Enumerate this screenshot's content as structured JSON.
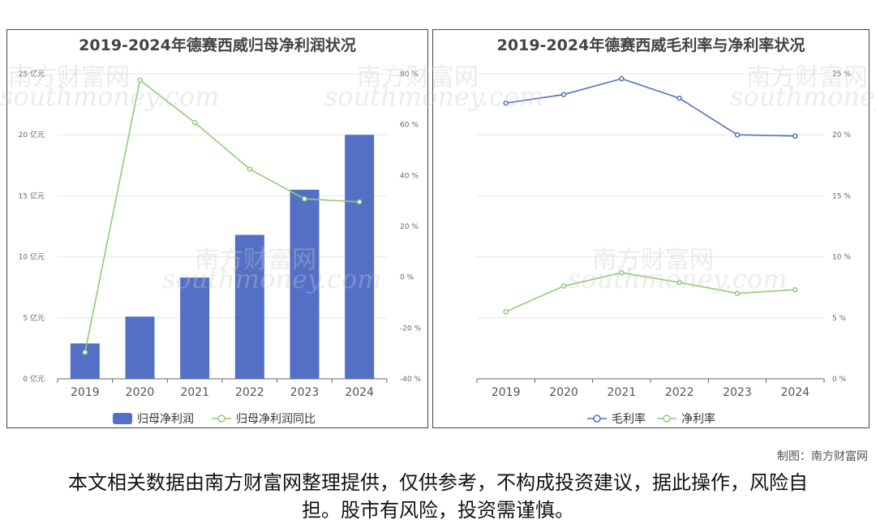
{
  "watermark": {
    "brand": "南方财富网",
    "site": "southmoney.com"
  },
  "chart_data": [
    {
      "type": "bar",
      "title": "2019-2024年德赛西威归母净利润状况",
      "categories": [
        "2019",
        "2020",
        "2021",
        "2022",
        "2023",
        "2024"
      ],
      "series": [
        {
          "name": "归母净利润",
          "kind": "bar",
          "axis": "left",
          "color": "#5470c6",
          "values": [
            2.9,
            5.1,
            8.3,
            11.8,
            15.5,
            20.0
          ]
        },
        {
          "name": "归母净利润同比",
          "kind": "line",
          "axis": "right",
          "color": "#91cc75",
          "values": [
            -29.6,
            77.5,
            60.8,
            42.5,
            30.8,
            29.6
          ]
        }
      ],
      "left_axis": {
        "ylim": [
          0,
          25
        ],
        "ticks": [
          "0 亿元",
          "5 亿元",
          "10 亿元",
          "15 亿元",
          "20 亿元",
          "25 亿元"
        ]
      },
      "right_axis": {
        "ylim": [
          -40,
          80
        ],
        "ticks": [
          "-40 %",
          "-20 %",
          "0 %",
          "20 %",
          "40 %",
          "60 %",
          "80 %"
        ]
      },
      "legend": "bottom"
    },
    {
      "type": "line",
      "title": "2019-2024年德赛西威毛利率与净利率状况",
      "categories": [
        "2019",
        "2020",
        "2021",
        "2022",
        "2023",
        "2024"
      ],
      "series": [
        {
          "name": "毛利率",
          "color": "#5470c6",
          "values": [
            22.6,
            23.3,
            24.6,
            23.0,
            20.0,
            19.9
          ]
        },
        {
          "name": "净利率",
          "color": "#91cc75",
          "values": [
            5.5,
            7.6,
            8.7,
            7.9,
            7.0,
            7.3
          ]
        }
      ],
      "right_axis": {
        "ylim": [
          0,
          25
        ],
        "ticks": [
          "0 %",
          "5 %",
          "10 %",
          "15 %",
          "20 %",
          "25 %"
        ]
      },
      "legend": "bottom"
    }
  ],
  "credit": "制图：南方财富网",
  "disclaimer": "本文相关数据由南方财富网整理提供，仅供参考，不构成投资建议，据此操作，风险自担。股市有风险，投资需谨慎。"
}
